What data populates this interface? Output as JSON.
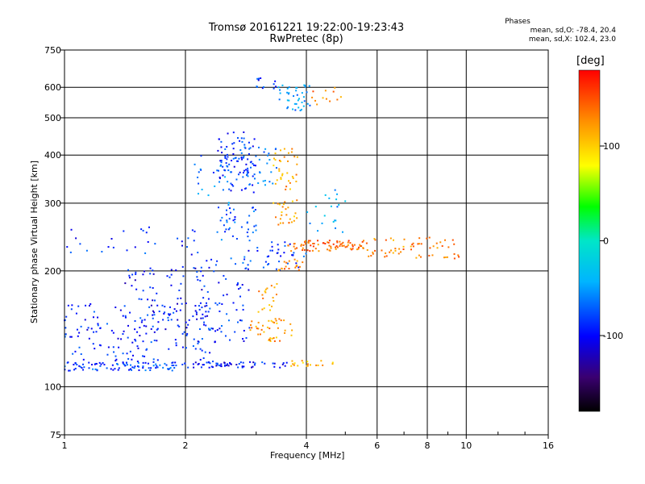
{
  "chart_data": {
    "type": "scatter",
    "title": "Tromsø 20161221 19:22:00-19:23:43",
    "subtitle": "RwPretec (8p)",
    "xlabel": "Frequency [MHz]",
    "ylabel": "Stationary phase Virtual Height [km]",
    "x_scale": "log",
    "y_scale": "log",
    "xlim": [
      1,
      16
    ],
    "ylim": [
      75,
      750
    ],
    "x_ticks": [
      1,
      2,
      4,
      6,
      8,
      10,
      16
    ],
    "x_tick_labels": [
      "1",
      "2",
      "4",
      "6",
      "8",
      "10",
      "16"
    ],
    "y_ticks": [
      75,
      100,
      200,
      300,
      400,
      500,
      600,
      750
    ],
    "y_tick_labels": [
      "75",
      "100",
      "200",
      "300",
      "400",
      "500",
      "600",
      "750"
    ],
    "grid": true,
    "phases": {
      "title": "Phases",
      "line_o": "mean, sd,O: -78.4, 20.4",
      "line_x": "mean, sd,X: 102.4, 23.0"
    },
    "colorbar": {
      "unit": "[deg]",
      "range": [
        -180,
        180
      ],
      "ticks": [
        100,
        0,
        -100
      ],
      "tick_labels": [
        "100",
        "0",
        "-100"
      ],
      "colormap": "rainbow (black-purple-blue-cyan-green-yellow-orange-red)"
    },
    "clusters": [
      {
        "f": [
          1.0,
          1.95
        ],
        "h": [
          110,
          116
        ],
        "phase": -95,
        "n": 90
      },
      {
        "f": [
          1.95,
          3.6
        ],
        "h": [
          112,
          116
        ],
        "phase": -110,
        "n": 60
      },
      {
        "f": [
          3.6,
          4.7
        ],
        "h": [
          113,
          117
        ],
        "phase": 110,
        "n": 20
      },
      {
        "f": [
          1.0,
          2.4
        ],
        "h": [
          115,
          165
        ],
        "phase": -105,
        "n": 170
      },
      {
        "f": [
          1.4,
          2.3
        ],
        "h": [
          140,
          205
        ],
        "phase": -110,
        "n": 80
      },
      {
        "f": [
          2.2,
          2.9
        ],
        "h": [
          130,
          220
        ],
        "phase": -100,
        "n": 60
      },
      {
        "f": [
          2.9,
          3.7
        ],
        "h": [
          130,
          150
        ],
        "phase": 120,
        "n": 40
      },
      {
        "f": [
          3.0,
          3.4
        ],
        "h": [
          150,
          190
        ],
        "phase": 120,
        "n": 20
      },
      {
        "f": [
          2.8,
          4.0
        ],
        "h": [
          200,
          240
        ],
        "phase": -100,
        "n": 40
      },
      {
        "f": [
          3.6,
          5.6
        ],
        "h": [
          225,
          240
        ],
        "phase": 140,
        "n": 80
      },
      {
        "f": [
          3.4,
          4.0
        ],
        "h": [
          200,
          215
        ],
        "phase": 130,
        "n": 18
      },
      {
        "f": [
          5.6,
          9.6
        ],
        "h": [
          215,
          245
        ],
        "phase": 130,
        "n": 60
      },
      {
        "f": [
          1.0,
          2.2
        ],
        "h": [
          220,
          260
        ],
        "phase": -100,
        "n": 30
      },
      {
        "f": [
          2.4,
          3.0
        ],
        "h": [
          240,
          300
        ],
        "phase": -90,
        "n": 40
      },
      {
        "f": [
          2.4,
          3.0
        ],
        "h": [
          320,
          460
        ],
        "phase": -100,
        "n": 90
      },
      {
        "f": [
          2.1,
          2.6
        ],
        "h": [
          300,
          400
        ],
        "phase": -80,
        "n": 25
      },
      {
        "f": [
          2.8,
          3.4
        ],
        "h": [
          330,
          430
        ],
        "phase": -90,
        "n": 30
      },
      {
        "f": [
          3.3,
          3.8
        ],
        "h": [
          260,
          420
        ],
        "phase": 120,
        "n": 60
      },
      {
        "f": [
          3.4,
          4.1
        ],
        "h": [
          520,
          610
        ],
        "phase": -70,
        "n": 40
      },
      {
        "f": [
          3.0,
          3.4
        ],
        "h": [
          590,
          640
        ],
        "phase": -100,
        "n": 12
      },
      {
        "f": [
          4.0,
          5.0
        ],
        "h": [
          540,
          600
        ],
        "phase": 130,
        "n": 12
      },
      {
        "f": [
          4.0,
          5.0
        ],
        "h": [
          250,
          330
        ],
        "phase": -60,
        "n": 20
      }
    ]
  }
}
